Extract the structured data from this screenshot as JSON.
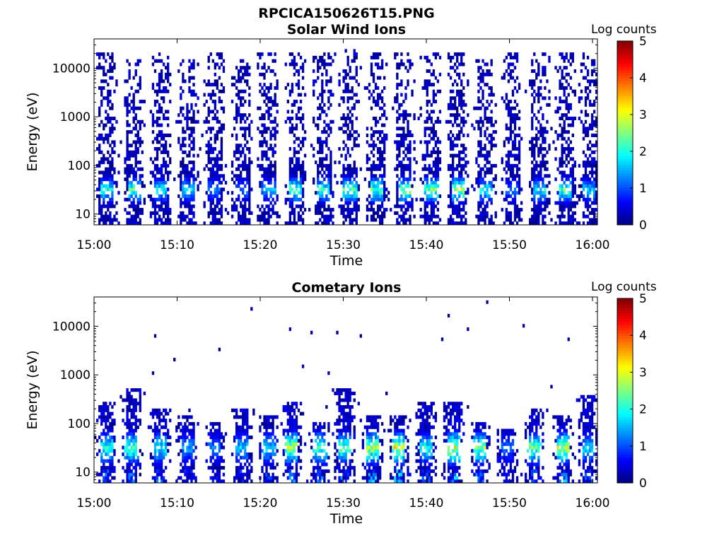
{
  "figure": {
    "title": "RPCICA150626T15.PNG"
  },
  "chart_data": [
    {
      "type": "heatmap",
      "title": "Solar Wind Ions",
      "xlabel": "Time",
      "ylabel": "Energy (eV)",
      "x_ticks": [
        "15:00",
        "15:10",
        "15:20",
        "15:30",
        "15:40",
        "15:50",
        "16:00"
      ],
      "x_range": [
        "15:00",
        "16:00"
      ],
      "y_scale": "log",
      "y_ticks": [
        10,
        100,
        1000,
        10000
      ],
      "y_tick_labels": [
        "10",
        "100",
        "1000",
        "10000"
      ],
      "y_range": [
        6,
        40000
      ],
      "colorbar": {
        "label": "Log counts",
        "range": [
          0,
          5
        ],
        "ticks": [
          "0",
          "1",
          "2",
          "3",
          "4",
          "5"
        ],
        "colormap": "jet"
      },
      "grid": false,
      "pattern": "vertical stripes roughly every 3.3 minutes; dense low-level counts from 10 eV to 20 keV, peak log counts ~3 at 25-40 eV",
      "bursts": [
        {
          "t": 1.5,
          "e_top": 20000,
          "peak": 2.5
        },
        {
          "t": 4.8,
          "e_top": 15000,
          "peak": 2.7
        },
        {
          "t": 8.0,
          "e_top": 20000,
          "peak": 2.3
        },
        {
          "t": 11.3,
          "e_top": 15000,
          "peak": 2.2
        },
        {
          "t": 14.5,
          "e_top": 20000,
          "peak": 1.6
        },
        {
          "t": 17.8,
          "e_top": 15000,
          "peak": 1.5
        },
        {
          "t": 21.0,
          "e_top": 20000,
          "peak": 1.8
        },
        {
          "t": 24.3,
          "e_top": 20000,
          "peak": 2.9
        },
        {
          "t": 27.6,
          "e_top": 20000,
          "peak": 2.6
        },
        {
          "t": 30.8,
          "e_top": 25000,
          "peak": 2.9
        },
        {
          "t": 34.1,
          "e_top": 20000,
          "peak": 3.0
        },
        {
          "t": 37.3,
          "e_top": 20000,
          "peak": 3.1
        },
        {
          "t": 40.6,
          "e_top": 20000,
          "peak": 3.0
        },
        {
          "t": 43.8,
          "e_top": 20000,
          "peak": 3.3
        },
        {
          "t": 47.1,
          "e_top": 15000,
          "peak": 2.4
        },
        {
          "t": 50.3,
          "e_top": 20000,
          "peak": 1.5
        },
        {
          "t": 53.6,
          "e_top": 20000,
          "peak": 2.4
        },
        {
          "t": 56.8,
          "e_top": 20000,
          "peak": 2.8
        },
        {
          "t": 59.6,
          "e_top": 20000,
          "peak": 2.0
        }
      ]
    },
    {
      "type": "heatmap",
      "title": "Cometary Ions",
      "xlabel": "Time",
      "ylabel": "Energy (eV)",
      "x_ticks": [
        "15:00",
        "15:10",
        "15:20",
        "15:30",
        "15:40",
        "15:50",
        "16:00"
      ],
      "x_range": [
        "15:00",
        "16:00"
      ],
      "y_scale": "log",
      "y_ticks": [
        10,
        100,
        1000,
        10000
      ],
      "y_tick_labels": [
        "10",
        "100",
        "1000",
        "10000"
      ],
      "y_range": [
        6,
        40000
      ],
      "colorbar": {
        "label": "Log counts",
        "range": [
          0,
          5
        ],
        "ticks": [
          "0",
          "1",
          "2",
          "3",
          "4",
          "5"
        ],
        "colormap": "jet"
      },
      "grid": false,
      "pattern": "plumes from 6 eV up to 100-500 eV roughly every 3.3 minutes, peak log counts ~3.5 near 30-40 eV; sparse isolated counts above 1 keV",
      "bursts": [
        {
          "t": 1.5,
          "e_top": 300,
          "peak": 2.6
        },
        {
          "t": 4.5,
          "e_top": 500,
          "peak": 2.8
        },
        {
          "t": 8.0,
          "e_top": 200,
          "peak": 2.4
        },
        {
          "t": 11.3,
          "e_top": 150,
          "peak": 1.8
        },
        {
          "t": 14.5,
          "e_top": 100,
          "peak": 1.5
        },
        {
          "t": 17.8,
          "e_top": 200,
          "peak": 2.0
        },
        {
          "t": 21.0,
          "e_top": 150,
          "peak": 2.2
        },
        {
          "t": 23.8,
          "e_top": 300,
          "peak": 3.5
        },
        {
          "t": 27.2,
          "e_top": 100,
          "peak": 3.0
        },
        {
          "t": 30.2,
          "e_top": 500,
          "peak": 2.8
        },
        {
          "t": 33.5,
          "e_top": 150,
          "peak": 3.5
        },
        {
          "t": 36.7,
          "e_top": 150,
          "peak": 3.6
        },
        {
          "t": 40.0,
          "e_top": 300,
          "peak": 2.4
        },
        {
          "t": 43.3,
          "e_top": 300,
          "peak": 3.7
        },
        {
          "t": 46.5,
          "e_top": 100,
          "peak": 3.2
        },
        {
          "t": 49.8,
          "e_top": 80,
          "peak": 1.5
        },
        {
          "t": 53.0,
          "e_top": 200,
          "peak": 3.1
        },
        {
          "t": 56.5,
          "e_top": 150,
          "peak": 3.4
        },
        {
          "t": 59.5,
          "e_top": 400,
          "peak": 2.2
        }
      ]
    }
  ]
}
